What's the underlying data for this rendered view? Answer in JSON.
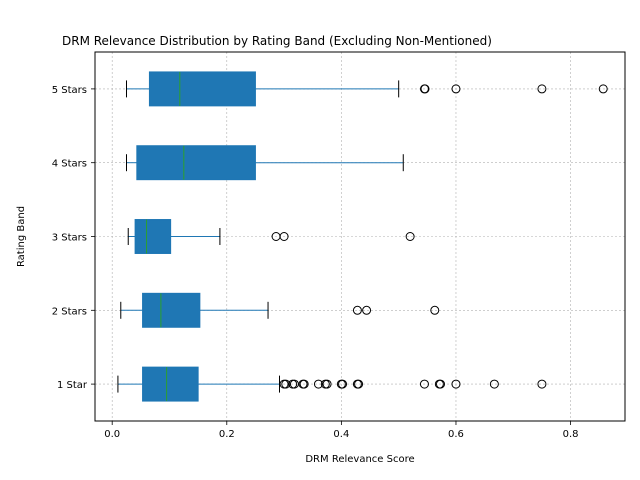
{
  "chart_data": {
    "type": "boxplot",
    "orientation": "horizontal",
    "title": "DRM Relevance Distribution by Rating Band (Excluding Non-Mentioned)",
    "xlabel": "DRM Relevance Score",
    "ylabel": "Rating Band",
    "xlim": [
      -0.03,
      0.895
    ],
    "x_ticks": [
      0.0,
      0.2,
      0.4,
      0.6,
      0.8
    ],
    "x_tick_labels": [
      "0.0",
      "0.2",
      "0.4",
      "0.6",
      "0.8"
    ],
    "grid": true,
    "legend": "none",
    "colors": {
      "box_fill": "#1f77b4",
      "whisker": "#1f77b4",
      "median": "#2ca02c",
      "cap": "#000000",
      "flier_edge": "#000000",
      "grid": "#b0b0b0"
    },
    "categories": [
      "1 Star",
      "2 Stars",
      "3 Stars",
      "4 Stars",
      "5 Stars"
    ],
    "boxes": [
      {
        "label": "1 Star",
        "whislo": 0.01,
        "q1": 0.053,
        "med": 0.095,
        "q3": 0.15,
        "whishi": 0.292,
        "fliers": [
          0.3,
          0.303,
          0.315,
          0.318,
          0.333,
          0.335,
          0.36,
          0.372,
          0.375,
          0.4,
          0.402,
          0.428,
          0.43,
          0.545,
          0.571,
          0.573,
          0.6,
          0.667,
          0.75
        ]
      },
      {
        "label": "2 Stars",
        "whislo": 0.015,
        "q1": 0.053,
        "med": 0.085,
        "q3": 0.153,
        "whishi": 0.272,
        "fliers": [
          0.428,
          0.444,
          0.563
        ]
      },
      {
        "label": "3 Stars",
        "whislo": 0.028,
        "q1": 0.04,
        "med": 0.06,
        "q3": 0.102,
        "whishi": 0.188,
        "fliers": [
          0.286,
          0.3,
          0.52
        ]
      },
      {
        "label": "4 Stars",
        "whislo": 0.025,
        "q1": 0.043,
        "med": 0.125,
        "q3": 0.25,
        "whishi": 0.508,
        "fliers": []
      },
      {
        "label": "5 Stars",
        "whislo": 0.025,
        "q1": 0.065,
        "med": 0.118,
        "q3": 0.25,
        "whishi": 0.5,
        "fliers": [
          0.545,
          0.546,
          0.6,
          0.75,
          0.857
        ]
      }
    ]
  }
}
